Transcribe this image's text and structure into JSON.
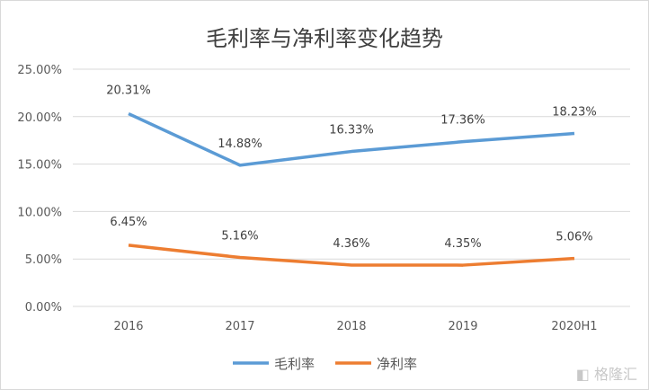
{
  "chart_data": {
    "type": "line",
    "title": "毛利率与净利率变化趋势",
    "categories": [
      "2016",
      "2017",
      "2018",
      "2019",
      "2020H1"
    ],
    "series": [
      {
        "name": "毛利率",
        "color": "#5b9bd5",
        "values": [
          20.31,
          14.88,
          16.33,
          17.36,
          18.23
        ],
        "labels": [
          "20.31%",
          "14.88%",
          "16.33%",
          "17.36%",
          "18.23%"
        ]
      },
      {
        "name": "净利率",
        "color": "#ed7d31",
        "values": [
          6.45,
          5.16,
          4.36,
          4.35,
          5.06
        ],
        "labels": [
          "6.45%",
          "5.16%",
          "4.36%",
          "4.35%",
          "5.06%"
        ]
      }
    ],
    "yticks": [
      "0.00%",
      "5.00%",
      "10.00%",
      "15.00%",
      "20.00%",
      "25.00%"
    ],
    "ylim": [
      0,
      25
    ],
    "grid": true,
    "legend": "bottom"
  },
  "watermark": "格隆汇"
}
